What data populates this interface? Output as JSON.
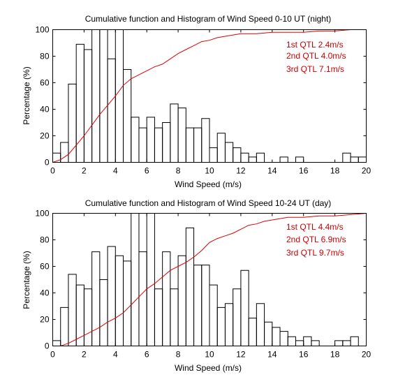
{
  "colors": {
    "histogram": "#000000",
    "cdf": "#e00000",
    "annotation": "#cc0000",
    "axes": "#000000"
  },
  "chart_data": [
    {
      "type": "histogram+line",
      "title": "Cumulative function and Histogram of Wind Speed 0-10 UT (night)",
      "xlabel": "Wind Speed (m/s)",
      "ylabel": "Percentage (%)",
      "xlim": [
        0,
        20
      ],
      "ylim": [
        0,
        100
      ],
      "xticks": [
        "0",
        "2",
        "4",
        "6",
        "8",
        "10",
        "12",
        "14",
        "16",
        "18",
        "20"
      ],
      "yticks": [
        "0",
        "20",
        "40",
        "60",
        "80",
        "100"
      ],
      "grid": false,
      "bin_width": 0.5,
      "histogram": [
        7,
        15,
        59,
        89,
        85,
        100,
        100,
        78,
        100,
        70,
        34,
        26,
        34,
        26,
        30,
        44,
        41,
        26,
        26,
        33,
        11,
        22,
        15,
        11,
        7,
        4,
        7,
        0,
        0,
        4,
        0,
        4,
        0,
        0,
        0,
        0,
        0,
        7,
        4,
        4
      ],
      "cdf": {
        "x": [
          0,
          0.5,
          1,
          1.5,
          2,
          2.5,
          3,
          3.5,
          4,
          4.5,
          5,
          5.5,
          6,
          6.5,
          7,
          7.5,
          8,
          8.5,
          9,
          9.5,
          10,
          10.5,
          11,
          11.5,
          12,
          13,
          14,
          15,
          16,
          17,
          18,
          19,
          20
        ],
        "y": [
          0,
          2,
          6,
          13,
          20,
          28,
          36,
          43,
          50,
          58,
          63,
          66,
          69,
          72,
          74,
          78,
          82,
          85,
          88,
          91,
          92,
          94,
          95,
          96,
          97,
          97,
          98,
          98,
          98,
          99,
          99,
          100,
          100
        ]
      },
      "annotations": [
        "1st QTL 2.4m/s",
        "2nd QTL 4.0m/s",
        "3rd QTL 7.1m/s"
      ]
    },
    {
      "type": "histogram+line",
      "title": "Cumulative function and Histogram of Wind Speed 10-24 UT (day)",
      "xlabel": "Wind Speed (m/s)",
      "ylabel": "Percentage (%)",
      "xlim": [
        0,
        20
      ],
      "ylim": [
        0,
        100
      ],
      "xticks": [
        "0",
        "2",
        "4",
        "6",
        "8",
        "10",
        "12",
        "14",
        "16",
        "18",
        "20"
      ],
      "yticks": [
        "0",
        "20",
        "40",
        "60",
        "80",
        "100"
      ],
      "grid": false,
      "bin_width": 0.5,
      "histogram": [
        4,
        29,
        54,
        46,
        43,
        71,
        50,
        75,
        68,
        64,
        100,
        71,
        100,
        43,
        71,
        43,
        68,
        89,
        61,
        61,
        46,
        29,
        32,
        43,
        57,
        21,
        32,
        18,
        14,
        11,
        7,
        4,
        7,
        4,
        0,
        0,
        4,
        4,
        7,
        0
      ],
      "cdf": {
        "x": [
          0,
          0.5,
          1,
          1.5,
          2,
          2.5,
          3,
          3.5,
          4,
          4.5,
          5,
          5.5,
          6,
          6.5,
          7,
          7.5,
          8,
          8.5,
          9,
          9.5,
          10,
          10.5,
          11,
          11.5,
          12,
          12.5,
          13,
          13.5,
          14,
          15,
          16,
          17,
          18,
          19,
          20
        ],
        "y": [
          0,
          0,
          2,
          5,
          8,
          11,
          14,
          18,
          21,
          25,
          31,
          37,
          43,
          47,
          52,
          57,
          60,
          63,
          67,
          72,
          78,
          81,
          83,
          85,
          88,
          91,
          92,
          94,
          95,
          97,
          97,
          98,
          98,
          99,
          100
        ]
      },
      "annotations": [
        "1st QTL 4.4m/s",
        "2nd QTL 6.9m/s",
        "3rd QTL 9.7m/s"
      ]
    }
  ]
}
